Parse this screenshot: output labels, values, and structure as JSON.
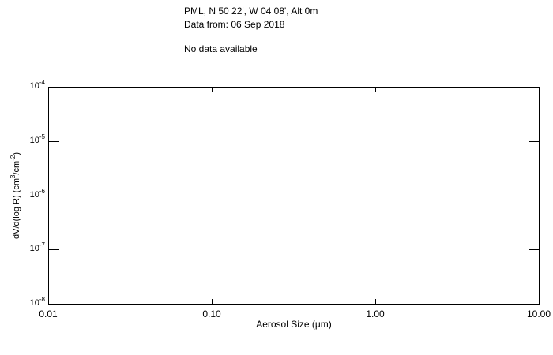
{
  "colors": {
    "background": "#ffffff",
    "foreground": "#000000"
  },
  "chart_data": {
    "type": "line",
    "title": "PML, N 50 22', W 04 08', Alt 0m",
    "subtitle": "Data from: 06 Sep 2018",
    "no_data_message": "No data available",
    "xlabel": "Aerosol Size (μm)",
    "ylabel": "dV/d(log R) (cm^3/cm^-2)",
    "x_scale": "log",
    "y_scale": "log",
    "xlim": [
      0.01,
      10.0
    ],
    "ylim": [
      1e-08,
      0.0001
    ],
    "x_tick_labels": [
      "0.01",
      "0.10",
      "1.00",
      "10.00"
    ],
    "y_tick_labels": [
      "10^-4",
      "10^-5",
      "10^-6",
      "10^-7",
      "10^-8"
    ],
    "series": [],
    "grid": false,
    "legend": "none",
    "frame": "box",
    "tick_direction": "in"
  }
}
